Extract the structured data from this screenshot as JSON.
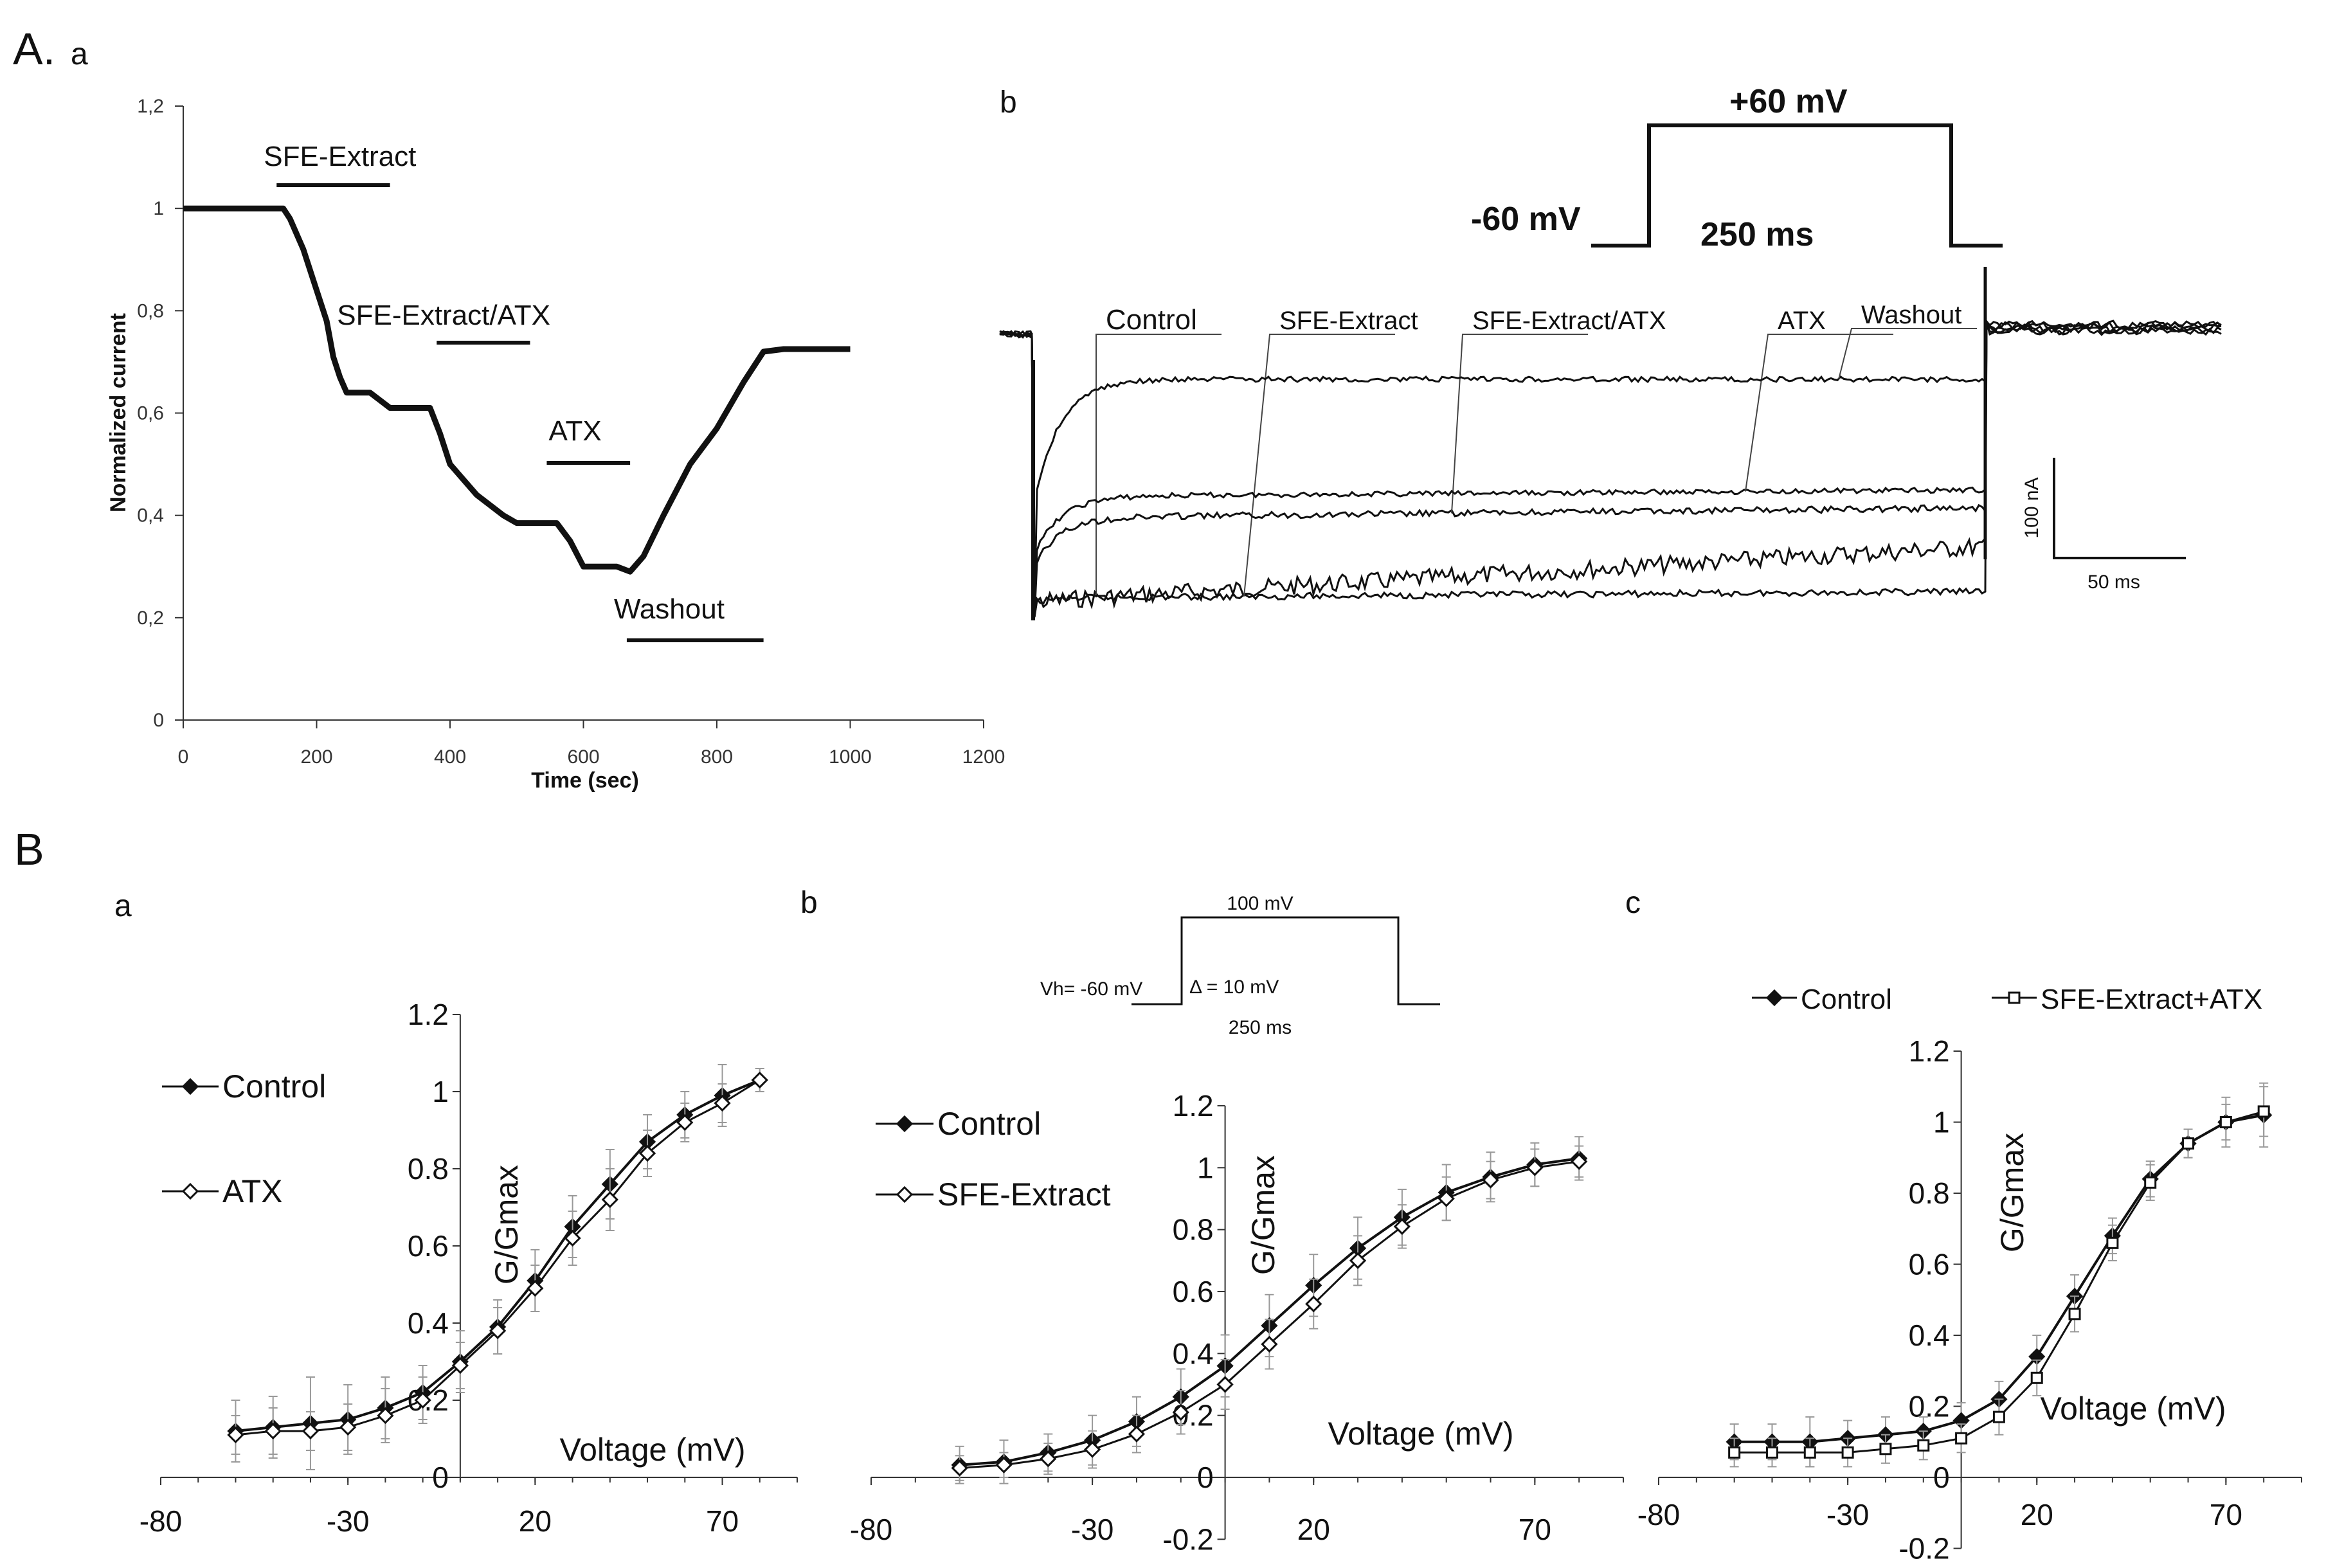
{
  "panel_labels": {
    "A": "A.",
    "A_a": "a",
    "A_b": "b",
    "B": "B",
    "B_a": "a",
    "B_b": "b",
    "B_c": "c"
  },
  "chart_data": [
    {
      "id": "A-a",
      "type": "line",
      "xlabel": "Time (sec)",
      "ylabel": "Normalized current",
      "xlim": [
        0,
        1200
      ],
      "ylim": [
        0,
        1.2
      ],
      "x_ticks": [
        "0",
        "200",
        "400",
        "600",
        "800",
        "1000",
        "1200"
      ],
      "y_ticks": [
        "0",
        "0,2",
        "0,4",
        "0,6",
        "0,8",
        "1",
        "1,2"
      ],
      "annotations": [
        {
          "label": "SFE-Extract",
          "start": 140,
          "end": 310
        },
        {
          "label": "SFE-Extract/ATX",
          "start": 380,
          "end": 520
        },
        {
          "label": "ATX",
          "start": 545,
          "end": 670
        },
        {
          "label": "Washout",
          "start": 665,
          "end": 870
        }
      ],
      "series": [
        {
          "values": [
            [
              0,
              1
            ],
            [
              50,
              1
            ],
            [
              100,
              1
            ],
            [
              150,
              1
            ],
            [
              160,
              0.98
            ],
            [
              180,
              0.92
            ],
            [
              200,
              0.84
            ],
            [
              215,
              0.78
            ],
            [
              225,
              0.71
            ],
            [
              235,
              0.67
            ],
            [
              245,
              0.64
            ],
            [
              280,
              0.64
            ],
            [
              310,
              0.61
            ],
            [
              370,
              0.61
            ],
            [
              385,
              0.56
            ],
            [
              400,
              0.5
            ],
            [
              440,
              0.44
            ],
            [
              480,
              0.4
            ],
            [
              500,
              0.385
            ],
            [
              560,
              0.385
            ],
            [
              580,
              0.35
            ],
            [
              600,
              0.3
            ],
            [
              650,
              0.3
            ],
            [
              670,
              0.29
            ],
            [
              690,
              0.32
            ],
            [
              720,
              0.4
            ],
            [
              760,
              0.5
            ],
            [
              800,
              0.57
            ],
            [
              840,
              0.66
            ],
            [
              870,
              0.72
            ],
            [
              900,
              0.725
            ],
            [
              1000,
              0.725
            ]
          ]
        }
      ]
    },
    {
      "id": "A-b",
      "type": "line",
      "protocol": {
        "holding": "-60 mV",
        "step": "+60 mV",
        "duration": "250 ms"
      },
      "scale_bar": {
        "current": "100 nA",
        "time": "50 ms"
      },
      "series": [
        {
          "name": "Control",
          "steady_current_nA": -220
        },
        {
          "name": "SFE-Extract",
          "steady_current_nA": -145
        },
        {
          "name": "SFE-Extract/ATX",
          "steady_current_nA": -58
        },
        {
          "name": "ATX",
          "steady_current_nA": -25
        },
        {
          "name": "Washout",
          "steady_current_nA": -130
        }
      ]
    },
    {
      "id": "B-a",
      "type": "line",
      "xlabel": "Voltage (mV)",
      "ylabel": "G/Gmax",
      "xlim": [
        -80,
        90
      ],
      "ylim": [
        0,
        1.2
      ],
      "x_ticks": [
        "-80",
        "-30",
        "20",
        "70"
      ],
      "y_ticks": [
        "0",
        "0.2",
        "0.4",
        "0.6",
        "0.8",
        "1",
        "1.2"
      ],
      "x": [
        -60,
        -50,
        -40,
        -30,
        -20,
        -10,
        0,
        10,
        20,
        30,
        40,
        50,
        60,
        70,
        80
      ],
      "series": [
        {
          "name": "Control",
          "marker": "filled-diamond",
          "values": [
            0.12,
            0.13,
            0.14,
            0.15,
            0.18,
            0.22,
            0.3,
            0.39,
            0.51,
            0.65,
            0.76,
            0.87,
            0.94,
            0.99,
            1.03
          ],
          "errors": [
            0.08,
            0.08,
            0.12,
            0.09,
            0.08,
            0.07,
            0.08,
            0.07,
            0.08,
            0.08,
            0.09,
            0.07,
            0.06,
            0.08,
            0.03
          ]
        },
        {
          "name": "ATX",
          "marker": "open-diamond",
          "values": [
            0.11,
            0.12,
            0.12,
            0.13,
            0.16,
            0.2,
            0.29,
            0.38,
            0.49,
            0.62,
            0.72,
            0.84,
            0.92,
            0.97,
            1.03
          ],
          "errors": [
            0.05,
            0.06,
            0.05,
            0.06,
            0.07,
            0.06,
            0.06,
            0.06,
            0.06,
            0.07,
            0.08,
            0.06,
            0.05,
            0.05,
            0.03
          ]
        }
      ]
    },
    {
      "id": "B-b",
      "type": "line",
      "xlabel": "Voltage (mV)",
      "ylabel": "G/Gmax",
      "xlim": [
        -80,
        90
      ],
      "ylim": [
        -0.2,
        1.2
      ],
      "x_ticks": [
        "-80",
        "-30",
        "20",
        "70"
      ],
      "y_ticks": [
        "-0.2",
        "0",
        "0.2",
        "0.4",
        "0.6",
        "0.8",
        "1",
        "1.2"
      ],
      "protocol": {
        "holding": "Vh= -60 mV",
        "step": "100 mV",
        "increment": "Δ = 10 mV",
        "duration": "250 ms"
      },
      "x": [
        -60,
        -50,
        -40,
        -30,
        -20,
        -10,
        0,
        10,
        20,
        30,
        40,
        50,
        60,
        70,
        80
      ],
      "series": [
        {
          "name": "Control",
          "marker": "filled-diamond",
          "values": [
            0.04,
            0.05,
            0.08,
            0.12,
            0.18,
            0.26,
            0.36,
            0.49,
            0.62,
            0.74,
            0.84,
            0.92,
            0.97,
            1.01,
            1.03
          ],
          "errors": [
            0.06,
            0.07,
            0.06,
            0.08,
            0.08,
            0.09,
            0.1,
            0.1,
            0.1,
            0.1,
            0.09,
            0.09,
            0.08,
            0.07,
            0.07
          ]
        },
        {
          "name": "SFE-Extract",
          "marker": "open-diamond",
          "values": [
            0.03,
            0.04,
            0.06,
            0.09,
            0.14,
            0.21,
            0.3,
            0.43,
            0.56,
            0.7,
            0.81,
            0.9,
            0.96,
            1.0,
            1.02
          ],
          "errors": [
            0.04,
            0.04,
            0.05,
            0.06,
            0.06,
            0.07,
            0.08,
            0.08,
            0.08,
            0.08,
            0.07,
            0.07,
            0.06,
            0.06,
            0.05
          ]
        }
      ]
    },
    {
      "id": "B-c",
      "type": "line",
      "xlabel": "Voltage (mV)",
      "ylabel": "G/Gmax",
      "xlim": [
        -80,
        90
      ],
      "ylim": [
        -0.2,
        1.2
      ],
      "x_ticks": [
        "-80",
        "-30",
        "20",
        "70"
      ],
      "y_ticks": [
        "-0.2",
        "0",
        "0.2",
        "0.4",
        "0.6",
        "0.8",
        "1",
        "1.2"
      ],
      "legend": "top",
      "x": [
        -60,
        -50,
        -40,
        -30,
        -20,
        -10,
        0,
        10,
        20,
        30,
        40,
        50,
        60,
        70,
        80
      ],
      "series": [
        {
          "name": "Control",
          "marker": "filled-diamond",
          "values": [
            0.1,
            0.1,
            0.1,
            0.11,
            0.12,
            0.13,
            0.16,
            0.22,
            0.34,
            0.51,
            0.68,
            0.84,
            0.94,
            1.0,
            1.02
          ],
          "errors": [
            0.05,
            0.05,
            0.07,
            0.05,
            0.05,
            0.04,
            0.05,
            0.05,
            0.06,
            0.06,
            0.05,
            0.05,
            0.04,
            0.07,
            0.09
          ]
        },
        {
          "name": "SFE-Extract+ATX",
          "marker": "open-square",
          "values": [
            0.07,
            0.07,
            0.07,
            0.07,
            0.08,
            0.09,
            0.11,
            0.17,
            0.28,
            0.46,
            0.66,
            0.83,
            0.94,
            1.0,
            1.03
          ],
          "errors": [
            0.04,
            0.04,
            0.04,
            0.04,
            0.04,
            0.04,
            0.04,
            0.05,
            0.05,
            0.05,
            0.05,
            0.05,
            0.04,
            0.05,
            0.07
          ]
        }
      ]
    }
  ]
}
